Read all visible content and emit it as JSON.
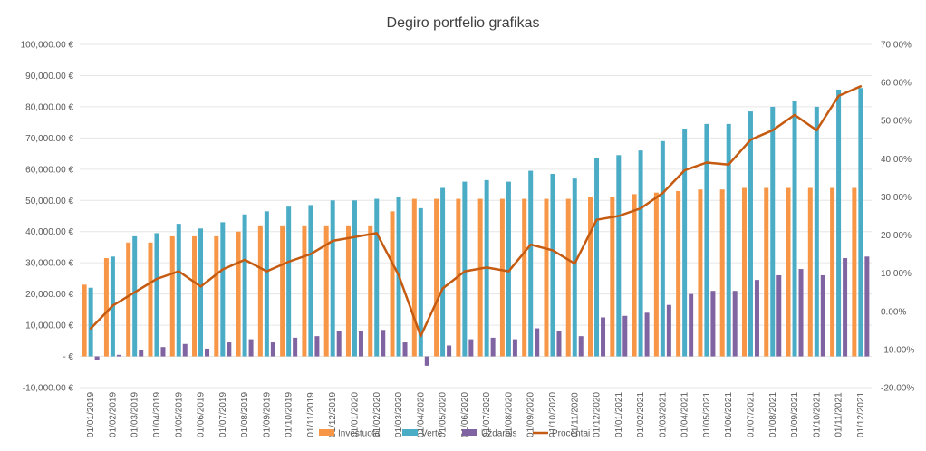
{
  "chart_data": {
    "type": "bar",
    "title": "Degiro portfelio grafikas",
    "categories": [
      "01/01/2019",
      "01/02/2019",
      "01/03/2019",
      "01/04/2019",
      "01/05/2019",
      "01/06/2019",
      "01/07/2019",
      "01/08/2019",
      "01/09/2019",
      "01/10/2019",
      "01/11/2019",
      "01/12/2019",
      "01/01/2020",
      "01/02/2020",
      "01/03/2020",
      "01/04/2020",
      "01/05/2020",
      "01/06/2020",
      "01/07/2020",
      "01/08/2020",
      "01/09/2020",
      "01/10/2020",
      "01/11/2020",
      "01/12/2020",
      "01/01/2021",
      "01/02/2021",
      "01/03/2021",
      "01/04/2021",
      "01/05/2021",
      "01/06/2021",
      "01/07/2021",
      "01/08/2021",
      "01/09/2021",
      "01/10/2021",
      "01/11/2021",
      "01/12/2021"
    ],
    "series": [
      {
        "name": "Investuota",
        "type": "bar",
        "axis": "left",
        "color": "#f79646",
        "values": [
          23000,
          31500,
          36500,
          36500,
          38500,
          38500,
          38500,
          40000,
          42000,
          42000,
          42000,
          42000,
          42000,
          42000,
          46500,
          50500,
          50500,
          50500,
          50500,
          50500,
          50500,
          50500,
          50500,
          51000,
          51000,
          52000,
          52500,
          53000,
          53500,
          53500,
          54000,
          54000,
          54000,
          54000,
          54000,
          54000
        ]
      },
      {
        "name": "Vertė",
        "type": "bar",
        "axis": "left",
        "color": "#4bacc6",
        "values": [
          22000,
          32000,
          38500,
          39500,
          42500,
          41000,
          43000,
          45500,
          46500,
          48000,
          48500,
          50000,
          50000,
          50500,
          51000,
          47500,
          54000,
          56000,
          56500,
          56000,
          59500,
          58500,
          57000,
          63500,
          64500,
          66000,
          69000,
          73000,
          74500,
          74500,
          78500,
          80000,
          82000,
          80000,
          85500,
          86000
        ]
      },
      {
        "name": "Uždarbis",
        "type": "bar",
        "axis": "left",
        "color": "#8064a2",
        "values": [
          -1000,
          500,
          2000,
          3000,
          4000,
          2500,
          4500,
          5500,
          4500,
          6000,
          6500,
          8000,
          8000,
          8500,
          4500,
          -3000,
          3500,
          5500,
          6000,
          5500,
          9000,
          8000,
          6500,
          12500,
          13000,
          14000,
          16500,
          20000,
          21000,
          21000,
          24500,
          26000,
          28000,
          26000,
          31500,
          32000
        ]
      },
      {
        "name": "Procentai",
        "type": "line",
        "axis": "right",
        "color": "#c55a11",
        "values": [
          -4.5,
          1.5,
          5.0,
          8.5,
          10.5,
          6.5,
          11.0,
          13.5,
          10.5,
          13.0,
          15.0,
          18.5,
          19.5,
          20.5,
          9.5,
          -6.5,
          6.0,
          10.5,
          11.5,
          10.5,
          17.5,
          16.0,
          12.5,
          24.0,
          25.0,
          27.0,
          31.0,
          37.0,
          39.0,
          38.5,
          45.0,
          47.5,
          51.5,
          47.5,
          56.5,
          59.0
        ]
      }
    ],
    "y_left": {
      "ylim": [
        -10000,
        100000
      ],
      "ticks": [
        -10000,
        0,
        10000,
        20000,
        30000,
        40000,
        50000,
        60000,
        70000,
        80000,
        90000,
        100000
      ],
      "tick_labels": [
        "-10,000.00 €",
        "-  €",
        "10,000.00 €",
        "20,000.00 €",
        "30,000.00 €",
        "40,000.00 €",
        "50,000.00 €",
        "60,000.00 €",
        "70,000.00 €",
        "80,000.00 €",
        "90,000.00 €",
        "100,000.00 €"
      ]
    },
    "y_right": {
      "ylim": [
        -20,
        70
      ],
      "ticks": [
        -20,
        -10,
        0,
        10,
        20,
        30,
        40,
        50,
        60,
        70
      ],
      "tick_labels": [
        "-20.00%",
        "-10.00%",
        "0.00%",
        "10.00%",
        "20.00%",
        "30.00%",
        "40.00%",
        "50.00%",
        "60.00%",
        "70.00%"
      ]
    },
    "xlabel": "",
    "ylabel": "",
    "grid": true,
    "legend_position": "bottom"
  }
}
